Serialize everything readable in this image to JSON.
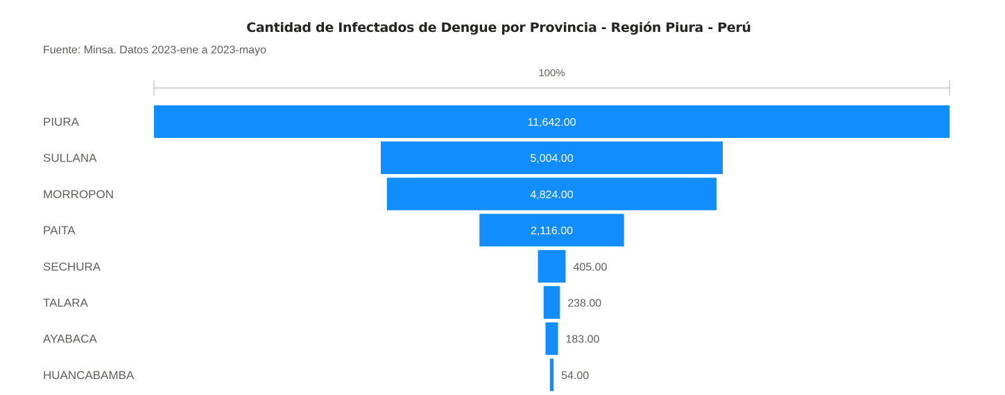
{
  "chart_data": {
    "type": "funnel",
    "title": "Cantidad de Infectados de Dengue por Provincia - Región Piura - Perú",
    "subtitle": "Fuente: Minsa. Datos 2023-ene a 2023-mayo",
    "axis_label": "100%",
    "categories": [
      "PIURA",
      "SULLANA",
      "MORROPON",
      "PAITA",
      "SECHURA",
      "TALARA",
      "AYABACA",
      "HUANCABAMBA"
    ],
    "values": [
      11642,
      5004,
      4824,
      2116,
      405,
      238,
      183,
      54
    ],
    "value_labels": [
      "11,642.00",
      "5,004.00",
      "4,824.00",
      "2,116.00",
      "405.00",
      "238.00",
      "183.00",
      "54.00"
    ],
    "bar_color": "#118dff",
    "label_color_inside": "#ffffff",
    "label_color_outside": "#605e5c",
    "category_color": "#605e5c",
    "axis_color": "#b3b0ad"
  }
}
